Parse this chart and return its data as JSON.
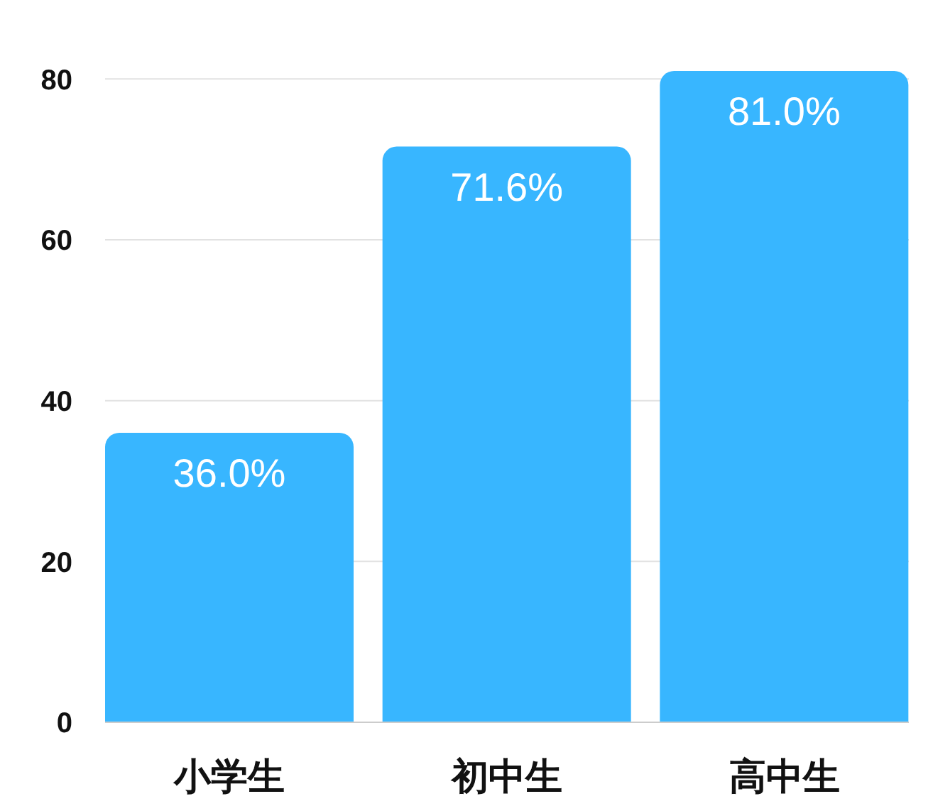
{
  "chart_data": {
    "type": "bar",
    "categories": [
      "小学生",
      "初中生",
      "高中生"
    ],
    "values": [
      36.0,
      71.6,
      81.0
    ],
    "value_labels": [
      "36.0%",
      "71.6%",
      "81.0%"
    ],
    "color": "#38b6ff",
    "ylim": [
      0,
      81
    ],
    "yticks": [
      0,
      20,
      40,
      60,
      80
    ],
    "grid": "y"
  }
}
